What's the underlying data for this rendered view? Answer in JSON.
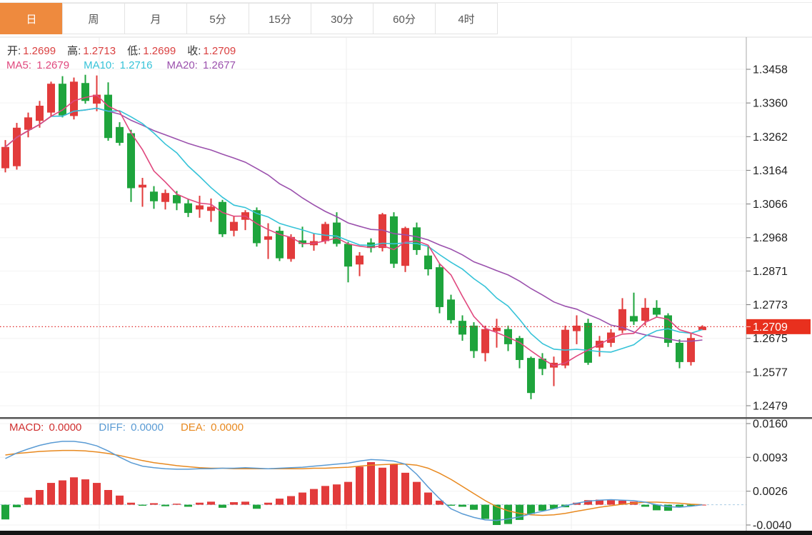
{
  "tabs": {
    "items": [
      {
        "key": "day",
        "label": "日",
        "selected": true
      },
      {
        "key": "week",
        "label": "周",
        "selected": false
      },
      {
        "key": "month",
        "label": "月",
        "selected": false
      },
      {
        "key": "5min",
        "label": "5分",
        "selected": false
      },
      {
        "key": "15min",
        "label": "15分",
        "selected": false
      },
      {
        "key": "30min",
        "label": "30分",
        "selected": false
      },
      {
        "key": "60min",
        "label": "60分",
        "selected": false
      },
      {
        "key": "4hour",
        "label": "4时",
        "selected": false
      }
    ]
  },
  "ohlc_bar": {
    "open_label": "开:",
    "open": "1.2699",
    "high_label": "高:",
    "high": "1.2713",
    "low_label": "低:",
    "low": "1.2699",
    "close_label": "收:",
    "close": "1.2709"
  },
  "ma_bar": {
    "ma5_label": "MA5:",
    "ma5": "1.2679",
    "ma10_label": "MA10:",
    "ma10": "1.2716",
    "ma20_label": "MA20:",
    "ma20": "1.2677"
  },
  "macd_bar": {
    "macd_label": "MACD:",
    "macd": "0.0000",
    "diff_label": "DIFF:",
    "diff": "0.0000",
    "dea_label": "DEA:",
    "dea": "0.0000"
  },
  "price_axis": {
    "tick_labels": [
      "1.3458",
      "1.3360",
      "1.3262",
      "1.3164",
      "1.3066",
      "1.2968",
      "1.2871",
      "1.2773",
      "1.2675",
      "1.2577",
      "1.2479"
    ],
    "last_price_label": "1.2709"
  },
  "macd_axis": {
    "tick_labels": [
      "0.0160",
      "0.0093",
      "0.0026",
      "-0.0040"
    ]
  },
  "colors": {
    "up": "#e23b3b",
    "down": "#1ea43c",
    "ma5": "#e0487e",
    "ma10": "#36c3d8",
    "ma20": "#9b51ad",
    "diff": "#5a9bd4",
    "dea": "#e8891f",
    "macd_text": "#d03030",
    "ohlc_value": "#da4040",
    "label_text": "#333333",
    "price_line": "#e02a2a",
    "badge_bg": "#e8301e",
    "badge_text": "#ffffff",
    "tab_selected_bg": "#ee8a3e",
    "axis_text": "#222222",
    "grid": "#f3f3f3",
    "vgrid": "#ededed",
    "zero_dash": "#a9cbe2",
    "divider": "#555555",
    "bottom_strip": "#151515",
    "axis_border": "#aaaaaa"
  },
  "chart_data": {
    "type": "candlestick",
    "title": "",
    "legend": [
      "MA5",
      "MA10",
      "MA20",
      "MACD",
      "DIFF",
      "DEA"
    ],
    "x_axis": {
      "labels_visible": false,
      "count": 62
    },
    "panels": [
      {
        "name": "price",
        "type": "candlestick",
        "up_means": "red_rising",
        "y_ticks": [
          1.3458,
          1.336,
          1.3262,
          1.3164,
          1.3066,
          1.2968,
          1.2871,
          1.2773,
          1.2675,
          1.2577,
          1.2479
        ],
        "last_price": 1.2709,
        "ma_periods": [
          5,
          10,
          20
        ],
        "candles": [
          [
            1.317,
            1.3252,
            1.3158,
            1.3232
          ],
          [
            1.3176,
            1.3302,
            1.3166,
            1.3288
          ],
          [
            1.3282,
            1.3332,
            1.326,
            1.3318
          ],
          [
            1.3308,
            1.3366,
            1.3288,
            1.3352
          ],
          [
            1.3332,
            1.3422,
            1.332,
            1.3416
          ],
          [
            1.3416,
            1.3438,
            1.3318,
            1.3324
          ],
          [
            1.3322,
            1.3434,
            1.3312,
            1.3422
          ],
          [
            1.3418,
            1.3442,
            1.3358,
            1.3366
          ],
          [
            1.3358,
            1.344,
            1.3336,
            1.3384
          ],
          [
            1.3384,
            1.342,
            1.325,
            1.3258
          ],
          [
            1.329,
            1.3304,
            1.3236,
            1.3244
          ],
          [
            1.3272,
            1.3282,
            1.3072,
            1.3112
          ],
          [
            1.3114,
            1.3142,
            1.3058,
            1.3122
          ],
          [
            1.3102,
            1.3118,
            1.3052,
            1.3074
          ],
          [
            1.3072,
            1.3108,
            1.305,
            1.3098
          ],
          [
            1.3092,
            1.3104,
            1.3048,
            1.3068
          ],
          [
            1.3068,
            1.308,
            1.3028,
            1.304
          ],
          [
            1.305,
            1.309,
            1.3026,
            1.3062
          ],
          [
            1.3046,
            1.3082,
            1.3014,
            1.3058
          ],
          [
            1.3072,
            1.3078,
            1.297,
            1.2978
          ],
          [
            1.2988,
            1.303,
            1.2972,
            1.3014
          ],
          [
            1.302,
            1.3048,
            1.299,
            1.3042
          ],
          [
            1.3048,
            1.3056,
            1.2942,
            1.2952
          ],
          [
            1.2962,
            1.301,
            1.2906,
            1.2972
          ],
          [
            1.2988,
            1.3,
            1.29,
            1.2908
          ],
          [
            1.2906,
            1.2978,
            1.2898,
            1.297
          ],
          [
            1.296,
            1.3,
            1.294,
            1.295
          ],
          [
            1.2946,
            1.298,
            1.293,
            1.2958
          ],
          [
            1.2958,
            1.3014,
            1.295,
            1.3008
          ],
          [
            1.3012,
            1.3042,
            1.2942,
            1.295
          ],
          [
            1.295,
            1.2956,
            1.2838,
            1.2884
          ],
          [
            1.289,
            1.2926,
            1.2856,
            1.2916
          ],
          [
            1.2954,
            1.2966,
            1.2925,
            1.2938
          ],
          [
            1.2938,
            1.304,
            1.2928,
            1.3036
          ],
          [
            1.303,
            1.3042,
            1.288,
            1.2892
          ],
          [
            1.2886,
            1.3,
            1.2868,
            1.2996
          ],
          [
            1.2998,
            1.3012,
            1.2918,
            1.2932
          ],
          [
            1.2916,
            1.2942,
            1.2858,
            1.2876
          ],
          [
            1.2882,
            1.2892,
            1.2748,
            1.2766
          ],
          [
            1.2788,
            1.2802,
            1.2718,
            1.2728
          ],
          [
            1.2726,
            1.2742,
            1.2668,
            1.2686
          ],
          [
            1.2712,
            1.2722,
            1.2618,
            1.2638
          ],
          [
            1.2632,
            1.2712,
            1.2608,
            1.2702
          ],
          [
            1.2696,
            1.2732,
            1.2648,
            1.2706
          ],
          [
            1.2702,
            1.2712,
            1.2638,
            1.2658
          ],
          [
            1.2676,
            1.2682,
            1.2588,
            1.2612
          ],
          [
            1.2618,
            1.2622,
            1.2498,
            1.2516
          ],
          [
            1.2616,
            1.2632,
            1.2568,
            1.2586
          ],
          [
            1.259,
            1.2622,
            1.2536,
            1.2604
          ],
          [
            1.2596,
            1.2712,
            1.2588,
            1.27
          ],
          [
            1.2696,
            1.2742,
            1.2658,
            1.2712
          ],
          [
            1.272,
            1.2732,
            1.2598,
            1.2604
          ],
          [
            1.2648,
            1.2682,
            1.2622,
            1.2668
          ],
          [
            1.2662,
            1.2702,
            1.265,
            1.2692
          ],
          [
            1.2698,
            1.2792,
            1.269,
            1.276
          ],
          [
            1.274,
            1.2808,
            1.2714,
            1.2724
          ],
          [
            1.2726,
            1.2792,
            1.2712,
            1.2764
          ],
          [
            1.2764,
            1.2786,
            1.2736,
            1.2744
          ],
          [
            1.2742,
            1.2748,
            1.265,
            1.2662
          ],
          [
            1.2662,
            1.2672,
            1.2588,
            1.2606
          ],
          [
            1.2606,
            1.2692,
            1.2596,
            1.2676
          ],
          [
            1.2699,
            1.2713,
            1.2699,
            1.2709
          ]
        ]
      },
      {
        "name": "macd",
        "type": "bar+line",
        "y_ticks": [
          0.016,
          0.0093,
          0.0026,
          -0.004
        ],
        "series": [
          {
            "name": "MACD",
            "type": "bar",
            "values": [
              -0.0029,
              -0.0005,
              0.0014,
              0.0029,
              0.0043,
              0.0048,
              0.0054,
              0.005,
              0.0043,
              0.0029,
              0.0018,
              0.0004,
              -0.0002,
              0.0003,
              -0.0003,
              0.0002,
              -0.0004,
              0.0004,
              0.0006,
              -0.0006,
              0.0005,
              0.0006,
              -0.0008,
              0.0004,
              0.0012,
              0.0017,
              0.0024,
              0.0031,
              0.0037,
              0.004,
              0.0045,
              0.0075,
              0.0084,
              0.0073,
              0.008,
              0.0063,
              0.0045,
              0.0024,
              0.0008,
              -0.0002,
              -0.0004,
              -0.001,
              -0.0028,
              -0.004,
              -0.0038,
              -0.003,
              -0.0018,
              -0.0012,
              -0.0008,
              -0.0005,
              0.0004,
              0.0009,
              0.001,
              0.0009,
              0.0008,
              0.0006,
              -0.0004,
              -0.0011,
              -0.0012,
              -0.0004,
              -0.0002,
              0.0
            ]
          },
          {
            "name": "DIFF",
            "type": "line",
            "values": [
              0.0091,
              0.0102,
              0.011,
              0.0117,
              0.0122,
              0.0125,
              0.0125,
              0.0122,
              0.0116,
              0.0106,
              0.0094,
              0.0083,
              0.0076,
              0.0073,
              0.0071,
              0.007,
              0.007,
              0.0071,
              0.0071,
              0.0072,
              0.0072,
              0.0073,
              0.0072,
              0.0071,
              0.0072,
              0.0073,
              0.0074,
              0.0076,
              0.0078,
              0.008,
              0.0082,
              0.0086,
              0.0089,
              0.0088,
              0.0086,
              0.008,
              0.006,
              0.0035,
              0.0012,
              -0.0008,
              -0.0018,
              -0.0025,
              -0.003,
              -0.0031,
              -0.0028,
              -0.0024,
              -0.0018,
              -0.0013,
              -0.0008,
              -0.0002,
              0.0003,
              0.0007,
              0.0009,
              0.001,
              0.0009,
              0.0008,
              0.0005,
              0.0,
              -0.0004,
              -0.0005,
              -0.0003,
              0.0
            ]
          },
          {
            "name": "DEA",
            "type": "line",
            "values": [
              0.0098,
              0.0101,
              0.0103,
              0.0105,
              0.0106,
              0.0107,
              0.0107,
              0.0106,
              0.0104,
              0.0101,
              0.0097,
              0.0092,
              0.0087,
              0.0083,
              0.008,
              0.0077,
              0.0075,
              0.0073,
              0.0072,
              0.0072,
              0.0071,
              0.0071,
              0.0071,
              0.0071,
              0.0071,
              0.0071,
              0.0071,
              0.0072,
              0.0072,
              0.0073,
              0.0074,
              0.0076,
              0.0078,
              0.0079,
              0.008,
              0.008,
              0.0078,
              0.0072,
              0.0062,
              0.005,
              0.0036,
              0.0022,
              0.0008,
              -0.0004,
              -0.0012,
              -0.0017,
              -0.002,
              -0.0021,
              -0.002,
              -0.0017,
              -0.0013,
              -0.0009,
              -0.0005,
              -0.0002,
              0.0001,
              0.0003,
              0.0005,
              0.0005,
              0.0004,
              0.0003,
              0.0001,
              0.0
            ]
          }
        ]
      }
    ]
  }
}
